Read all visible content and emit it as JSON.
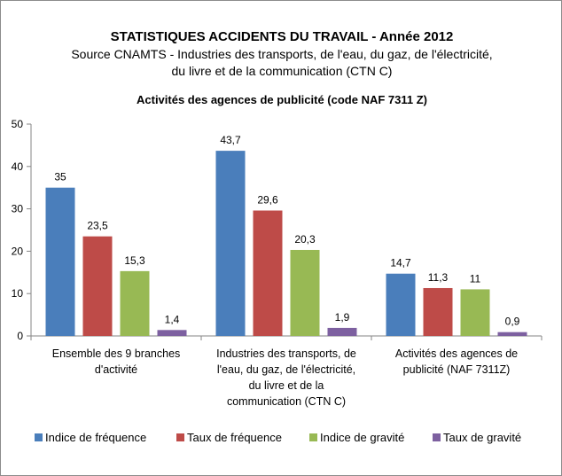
{
  "header": {
    "title": "STATISTIQUES ACCIDENTS DU TRAVAIL - Année 2012",
    "subtitle_line1": "Source CNAMTS - Industries des transports, de l'eau, du gaz, de l'électricité,",
    "subtitle_line2": "du livre et de la communication (CTN C)"
  },
  "chart_data": {
    "type": "bar",
    "title": "Activités des agences de publicité (code NAF 7311  Z)",
    "categories": [
      [
        "Ensemble des 9 branches",
        "d'activité"
      ],
      [
        "Industries des transports, de",
        "l'eau, du gaz, de l'électricité,",
        "du livre et de la",
        "communication (CTN C)"
      ],
      [
        "Activités des agences de",
        "publicité (NAF 7311Z)"
      ]
    ],
    "series": [
      {
        "name": "Indice de fréquence",
        "color": "#4a7ebb",
        "values": [
          35,
          43.7,
          14.7
        ],
        "labels": [
          "35",
          "43,7",
          "14,7"
        ]
      },
      {
        "name": "Taux de fréquence",
        "color": "#be4b48",
        "values": [
          23.5,
          29.6,
          11.3
        ],
        "labels": [
          "23,5",
          "29,6",
          "11,3"
        ]
      },
      {
        "name": "Indice de gravité",
        "color": "#98b954",
        "values": [
          15.3,
          20.3,
          11
        ],
        "labels": [
          "15,3",
          "20,3",
          "11"
        ]
      },
      {
        "name": "Taux de gravité",
        "color": "#7d60a0",
        "values": [
          1.4,
          1.9,
          0.9
        ],
        "labels": [
          "1,4",
          "1,9",
          "0,9"
        ]
      }
    ],
    "ylim": [
      0,
      50
    ],
    "yticks": [
      0,
      10,
      20,
      30,
      40,
      50
    ],
    "grid": false,
    "legend": "bottom"
  }
}
